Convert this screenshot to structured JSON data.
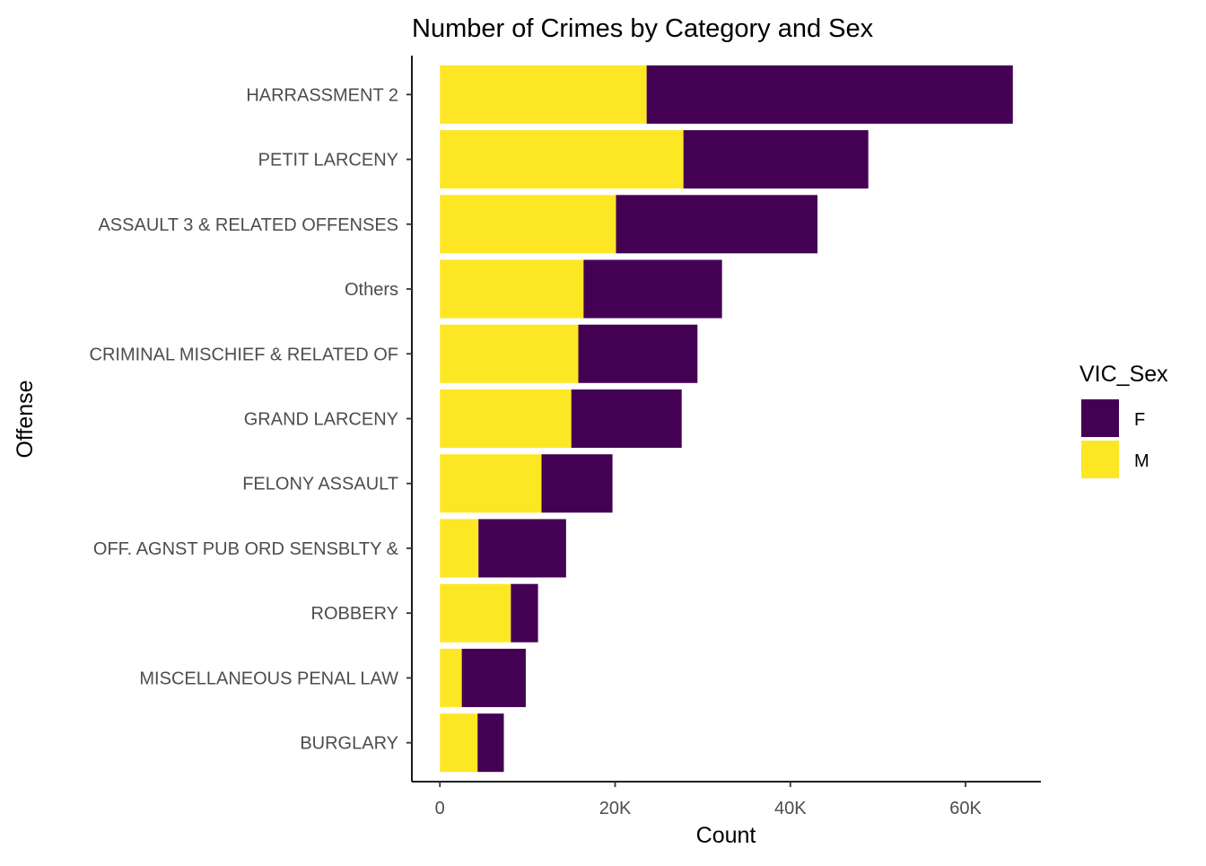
{
  "chart_data": {
    "type": "bar",
    "orientation": "horizontal",
    "stacked": true,
    "title": "Number of Crimes by Category and Sex",
    "xlabel": "Count",
    "ylabel": "Offense",
    "xlim": [
      -3200,
      68600
    ],
    "x_ticks": [
      {
        "value": 0,
        "label": "0"
      },
      {
        "value": 20000,
        "label": "20K"
      },
      {
        "value": 40000,
        "label": "40K"
      },
      {
        "value": 60000,
        "label": "60K"
      }
    ],
    "categories": [
      "HARRASSMENT 2",
      "PETIT LARCENY",
      "ASSAULT 3 & RELATED OFFENSES",
      "Others",
      "CRIMINAL MISCHIEF & RELATED OF",
      "GRAND LARCENY",
      "FELONY ASSAULT",
      "OFF. AGNST PUB ORD SENSBLTY &",
      "ROBBERY",
      "MISCELLANEOUS PENAL LAW",
      "BURGLARY"
    ],
    "series": [
      {
        "name": "M",
        "color": "#FDE725",
        "values": [
          23600,
          27800,
          20100,
          16400,
          15800,
          15000,
          11600,
          4400,
          8100,
          2500,
          4300
        ]
      },
      {
        "name": "F",
        "color": "#440154",
        "values": [
          41800,
          21100,
          23000,
          15800,
          13600,
          12600,
          8100,
          10000,
          3100,
          7300,
          3000
        ]
      }
    ],
    "grid": false,
    "legend": {
      "title": "VIC_Sex",
      "position": "right",
      "entries": [
        {
          "label": "F",
          "color": "#440154"
        },
        {
          "label": "M",
          "color": "#FDE725"
        }
      ]
    }
  }
}
